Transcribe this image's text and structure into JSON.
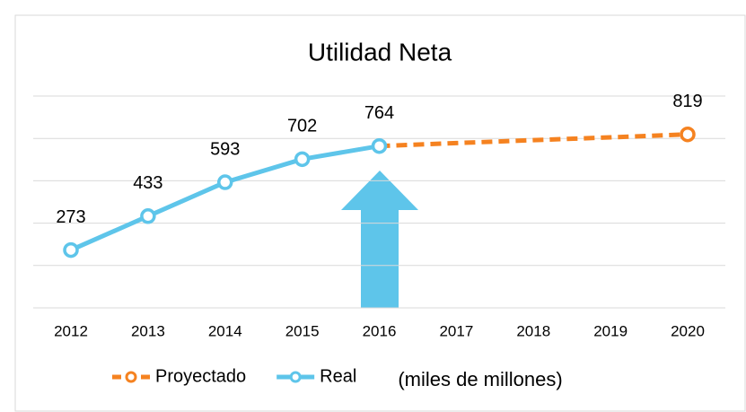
{
  "chart_data": {
    "type": "line",
    "title": "Utilidad Neta",
    "categories": [
      "2012",
      "2013",
      "2014",
      "2015",
      "2016",
      "2017",
      "2018",
      "2019",
      "2020"
    ],
    "series": [
      {
        "name": "Proyectado",
        "color": "#f58220",
        "dashed": true,
        "values": [
          null,
          null,
          null,
          null,
          764,
          778,
          792,
          805,
          819
        ]
      },
      {
        "name": "Real",
        "color": "#5ec5ea",
        "values": [
          273,
          433,
          593,
          702,
          764,
          null,
          null,
          null,
          null
        ]
      }
    ],
    "ylim": [
      0,
      1000
    ],
    "yticks": [
      0,
      200,
      400,
      600,
      800,
      1000
    ],
    "grid": true,
    "legend": "bottom",
    "note": "(miles de millones)"
  }
}
